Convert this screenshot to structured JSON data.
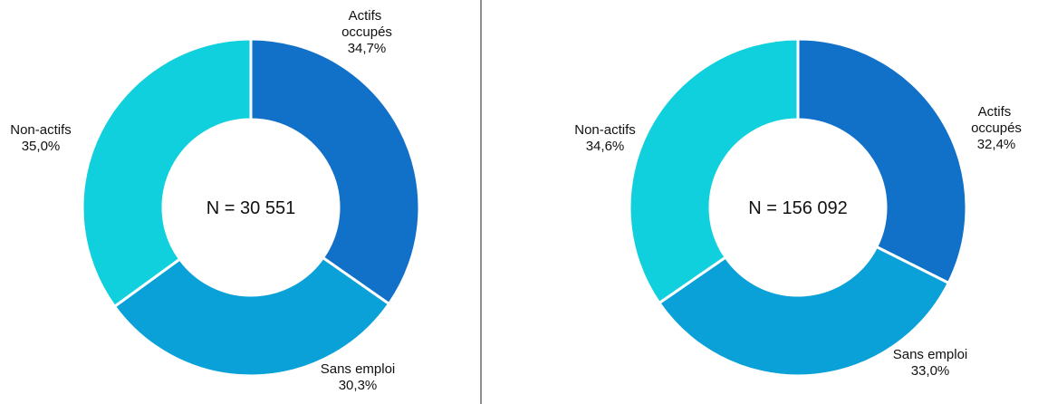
{
  "chart_data": [
    {
      "type": "donut",
      "annotation": "N = 30 551",
      "categories": [
        "Actifs occupés",
        "Sans emploi",
        "Non-actifs"
      ],
      "values": [
        34.7,
        30.3,
        35.0
      ],
      "value_labels": [
        "34,7%",
        "30,3%",
        "35,0%"
      ],
      "colors": [
        "#1170c8",
        "#0aa0d8",
        "#0fd0dc"
      ]
    },
    {
      "type": "donut",
      "annotation": "N = 156 092",
      "categories": [
        "Actifs occupés",
        "Sans emploi",
        "Non-actifs"
      ],
      "values": [
        32.4,
        33.0,
        34.6
      ],
      "value_labels": [
        "32,4%",
        "33,0%",
        "34,6%"
      ],
      "colors": [
        "#1170c8",
        "#0aa0d8",
        "#0fd0dc"
      ]
    }
  ]
}
